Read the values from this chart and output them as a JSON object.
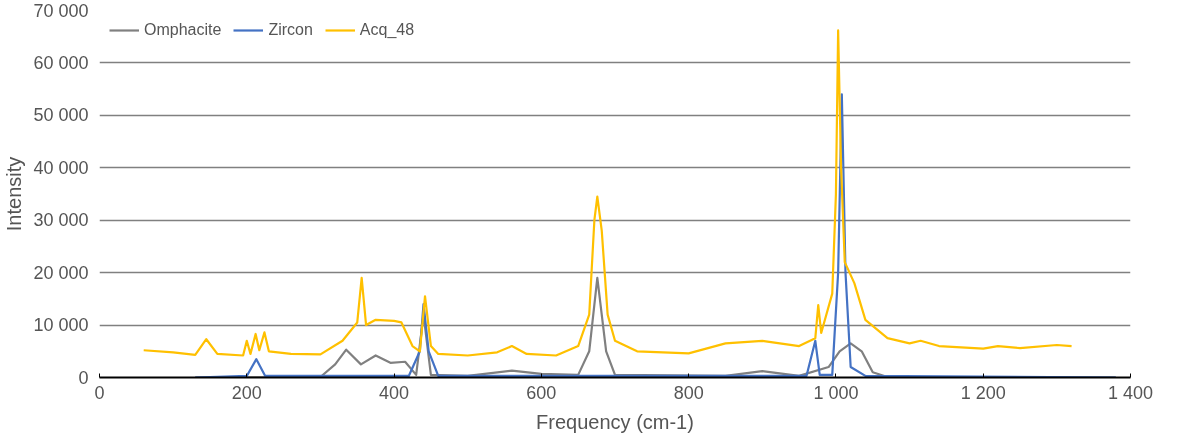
{
  "chart_data": {
    "type": "line",
    "xlabel": "Frequency (cm-1)",
    "ylabel": "Intensity",
    "xlim": [
      0,
      1400
    ],
    "ylim": [
      0,
      70000
    ],
    "xticks": [
      0,
      200,
      400,
      600,
      800,
      {
        "value": 1000,
        "label": "1 000"
      },
      {
        "value": 1200,
        "label": "1 200"
      },
      {
        "value": 1400,
        "label": "1 400"
      }
    ],
    "yticks": [
      0,
      {
        "value": 10000,
        "label": "10 000"
      },
      {
        "value": 20000,
        "label": "20 000"
      },
      {
        "value": 30000,
        "label": "30 000"
      },
      {
        "value": 40000,
        "label": "40 000"
      },
      {
        "value": 50000,
        "label": "50 000"
      },
      {
        "value": 60000,
        "label": "60 000"
      },
      {
        "value": 70000,
        "label": "70 000"
      }
    ],
    "grid": "y",
    "legend": "top left",
    "marker": "none",
    "line_style": "solid",
    "series": [
      {
        "name": "Omphacite",
        "color": "#808080",
        "x": [
          130,
          300,
          320,
          335,
          355,
          375,
          395,
          415,
          430,
          440,
          450,
          500,
          560,
          600,
          650,
          665,
          676,
          688,
          700,
          850,
          900,
          950,
          990,
          1005,
          1020,
          1035,
          1050,
          1070,
          1380
        ],
        "values": [
          0,
          100,
          2500,
          5300,
          2500,
          4200,
          2800,
          3000,
          500,
          12000,
          500,
          300,
          1300,
          700,
          500,
          5000,
          19000,
          5000,
          500,
          300,
          1200,
          300,
          2000,
          5000,
          6500,
          5000,
          1000,
          100,
          0
        ]
      },
      {
        "name": "Zircon",
        "color": "#4472c4",
        "x": [
          130,
          200,
          213,
          225,
          420,
          435,
          440,
          447,
          460,
          960,
          972,
          978,
          995,
          1003,
          1008,
          1013,
          1020,
          1040,
          1380
        ],
        "values": [
          0,
          300,
          3500,
          300,
          300,
          5000,
          14000,
          5000,
          300,
          300,
          7000,
          500,
          500,
          20000,
          54000,
          20000,
          2000,
          300,
          0
        ]
      },
      {
        "name": "Acq_48",
        "color": "#ffc000",
        "x": [
          60,
          100,
          130,
          145,
          160,
          195,
          200,
          205,
          212,
          217,
          224,
          230,
          260,
          300,
          330,
          350,
          356,
          362,
          375,
          400,
          410,
          425,
          435,
          442,
          450,
          460,
          500,
          540,
          560,
          580,
          620,
          650,
          665,
          672,
          676,
          682,
          690,
          700,
          730,
          800,
          850,
          900,
          950,
          972,
          976,
          980,
          995,
          1000,
          1003,
          1007,
          1012,
          1025,
          1040,
          1070,
          1100,
          1115,
          1140,
          1200,
          1220,
          1250,
          1300,
          1320
        ],
        "values": [
          5200,
          4800,
          4300,
          7300,
          4500,
          4200,
          7000,
          4500,
          8300,
          5200,
          8600,
          5000,
          4500,
          4400,
          7000,
          10500,
          19000,
          10000,
          11000,
          10800,
          10500,
          6000,
          5000,
          15500,
          6000,
          4500,
          4200,
          4800,
          6000,
          4500,
          4200,
          6000,
          12000,
          30000,
          34500,
          28000,
          12000,
          7000,
          5000,
          4600,
          6500,
          7000,
          6000,
          7500,
          13800,
          8500,
          16000,
          35000,
          66200,
          40000,
          22000,
          18000,
          11000,
          7500,
          6500,
          7000,
          6000,
          5500,
          6000,
          5600,
          6200,
          6000
        ]
      }
    ]
  }
}
